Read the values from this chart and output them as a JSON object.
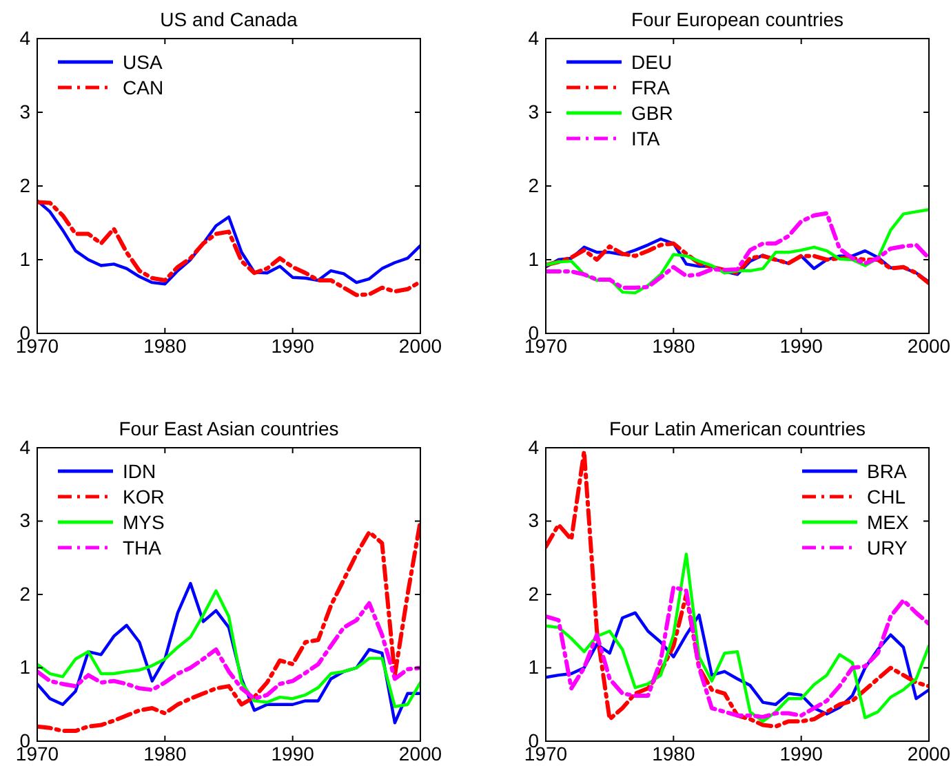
{
  "chart_data": [
    {
      "type": "line",
      "title": "US and Canada",
      "x": [
        1970,
        1971,
        1972,
        1973,
        1974,
        1975,
        1976,
        1977,
        1978,
        1979,
        1980,
        1981,
        1982,
        1983,
        1984,
        1985,
        1986,
        1987,
        1988,
        1989,
        1990,
        1991,
        1992,
        1993,
        1994,
        1995,
        1996,
        1997,
        1998,
        1999,
        2000
      ],
      "xlim": [
        1970,
        2000
      ],
      "xticks": [
        1970,
        1980,
        1990,
        2000
      ],
      "ylim": [
        0,
        4
      ],
      "yticks": [
        0,
        1,
        2,
        3,
        4
      ],
      "grid": false,
      "legend": "top left",
      "series": [
        {
          "name": "USA",
          "color": "#0000ff",
          "line_style": "solid",
          "values": [
            1.8,
            1.65,
            1.4,
            1.12,
            1.0,
            0.92,
            0.94,
            0.88,
            0.77,
            0.69,
            0.67,
            0.85,
            1.0,
            1.22,
            1.46,
            1.58,
            1.1,
            0.83,
            0.82,
            0.91,
            0.76,
            0.75,
            0.72,
            0.85,
            0.81,
            0.69,
            0.74,
            0.88,
            0.96,
            1.02,
            1.19
          ]
        },
        {
          "name": "CAN",
          "color": "#ff0000",
          "line_style": "dashed",
          "values": [
            1.78,
            1.77,
            1.6,
            1.35,
            1.35,
            1.22,
            1.42,
            1.1,
            0.85,
            0.75,
            0.72,
            0.9,
            1.02,
            1.22,
            1.35,
            1.38,
            0.98,
            0.82,
            0.88,
            1.02,
            0.9,
            0.82,
            0.72,
            0.72,
            0.62,
            0.52,
            0.53,
            0.62,
            0.57,
            0.6,
            0.7
          ]
        }
      ]
    },
    {
      "type": "line",
      "title": "Four European countries",
      "x": [
        1970,
        1971,
        1972,
        1973,
        1974,
        1975,
        1976,
        1977,
        1978,
        1979,
        1980,
        1981,
        1982,
        1983,
        1984,
        1985,
        1986,
        1987,
        1988,
        1989,
        1990,
        1991,
        1992,
        1993,
        1994,
        1995,
        1996,
        1997,
        1998,
        1999,
        2000
      ],
      "xlim": [
        1970,
        2000
      ],
      "xticks": [
        1970,
        1980,
        1990,
        2000
      ],
      "ylim": [
        0,
        4
      ],
      "yticks": [
        0,
        1,
        2,
        3,
        4
      ],
      "grid": false,
      "legend": "top left",
      "series": [
        {
          "name": "DEU",
          "color": "#0000ff",
          "line_style": "solid",
          "values": [
            0.9,
            1.0,
            1.02,
            1.17,
            1.1,
            1.1,
            1.07,
            1.13,
            1.2,
            1.28,
            1.22,
            0.94,
            0.91,
            0.91,
            0.84,
            0.8,
            0.98,
            1.06,
            1.0,
            0.95,
            1.05,
            0.88,
            1.0,
            1.05,
            1.05,
            1.12,
            1.03,
            0.89,
            0.89,
            0.82,
            0.7
          ]
        },
        {
          "name": "FRA",
          "color": "#ff0000",
          "line_style": "dashed",
          "values": [
            0.93,
            0.97,
            1.03,
            1.13,
            1.0,
            1.18,
            1.08,
            1.05,
            1.12,
            1.2,
            1.22,
            1.08,
            0.95,
            0.9,
            0.86,
            0.82,
            1.02,
            1.05,
            1.0,
            0.95,
            1.05,
            1.05,
            1.0,
            1.02,
            1.02,
            1.0,
            1.0,
            0.88,
            0.9,
            0.82,
            0.68
          ]
        },
        {
          "name": "GBR",
          "color": "#00ff00",
          "line_style": "solid",
          "values": [
            0.93,
            0.97,
            0.98,
            0.8,
            0.72,
            0.74,
            0.56,
            0.55,
            0.65,
            0.8,
            1.07,
            1.05,
            0.98,
            0.92,
            0.82,
            0.85,
            0.85,
            0.88,
            1.1,
            1.1,
            1.13,
            1.17,
            1.12,
            1.01,
            1.0,
            0.92,
            1.02,
            1.4,
            1.62,
            1.65,
            1.68
          ]
        },
        {
          "name": "ITA",
          "color": "#ff00ff",
          "line_style": "dashed",
          "values": [
            0.84,
            0.84,
            0.84,
            0.8,
            0.73,
            0.73,
            0.62,
            0.62,
            0.63,
            0.76,
            0.9,
            0.78,
            0.8,
            0.87,
            0.86,
            0.87,
            1.13,
            1.22,
            1.22,
            1.32,
            1.52,
            1.6,
            1.63,
            1.15,
            1.02,
            0.95,
            1.02,
            1.15,
            1.18,
            1.2,
            1.02
          ]
        }
      ]
    },
    {
      "type": "line",
      "title": "Four East Asian countries",
      "x": [
        1970,
        1971,
        1972,
        1973,
        1974,
        1975,
        1976,
        1977,
        1978,
        1979,
        1980,
        1981,
        1982,
        1983,
        1984,
        1985,
        1986,
        1987,
        1988,
        1989,
        1990,
        1991,
        1992,
        1993,
        1994,
        1995,
        1996,
        1997,
        1998,
        1999,
        2000
      ],
      "xlim": [
        1970,
        2000
      ],
      "xticks": [
        1970,
        1980,
        1990,
        2000
      ],
      "ylim": [
        0,
        4
      ],
      "yticks": [
        0,
        1,
        2,
        3,
        4
      ],
      "grid": false,
      "legend": "top left",
      "series": [
        {
          "name": "IDN",
          "color": "#0000ff",
          "line_style": "solid",
          "values": [
            0.78,
            0.58,
            0.5,
            0.68,
            1.22,
            1.18,
            1.43,
            1.58,
            1.35,
            0.82,
            1.12,
            1.75,
            2.15,
            1.63,
            1.78,
            1.55,
            0.85,
            0.42,
            0.5,
            0.5,
            0.5,
            0.55,
            0.55,
            0.85,
            0.95,
            1.0,
            1.25,
            1.2,
            0.25,
            0.65,
            0.65
          ]
        },
        {
          "name": "KOR",
          "color": "#ff0000",
          "line_style": "dashed",
          "values": [
            0.2,
            0.18,
            0.14,
            0.14,
            0.2,
            0.22,
            0.28,
            0.35,
            0.42,
            0.45,
            0.38,
            0.5,
            0.58,
            0.65,
            0.72,
            0.75,
            0.5,
            0.6,
            0.8,
            1.1,
            1.05,
            1.35,
            1.38,
            1.85,
            2.2,
            2.55,
            2.85,
            2.7,
            0.9,
            2.0,
            3.0
          ]
        },
        {
          "name": "MYS",
          "color": "#00ff00",
          "line_style": "solid",
          "values": [
            1.05,
            0.92,
            0.88,
            1.12,
            1.22,
            0.92,
            0.92,
            0.95,
            0.97,
            1.03,
            1.12,
            1.28,
            1.42,
            1.72,
            2.05,
            1.7,
            0.8,
            0.55,
            0.53,
            0.6,
            0.58,
            0.63,
            0.73,
            0.92,
            0.95,
            1.0,
            1.13,
            1.13,
            0.47,
            0.5,
            0.8
          ]
        },
        {
          "name": "THA",
          "color": "#ff00ff",
          "line_style": "dashed",
          "values": [
            0.95,
            0.82,
            0.78,
            0.75,
            0.9,
            0.8,
            0.82,
            0.78,
            0.72,
            0.7,
            0.8,
            0.92,
            1.0,
            1.12,
            1.25,
            0.95,
            0.72,
            0.58,
            0.63,
            0.78,
            0.82,
            0.93,
            1.05,
            1.3,
            1.55,
            1.65,
            1.88,
            1.45,
            0.85,
            0.98,
            1.0
          ]
        }
      ]
    },
    {
      "type": "line",
      "title": "Four Latin American countries",
      "x": [
        1970,
        1971,
        1972,
        1973,
        1974,
        1975,
        1976,
        1977,
        1978,
        1979,
        1980,
        1981,
        1982,
        1983,
        1984,
        1985,
        1986,
        1987,
        1988,
        1989,
        1990,
        1991,
        1992,
        1993,
        1994,
        1995,
        1996,
        1997,
        1998,
        1999,
        2000
      ],
      "xlim": [
        1970,
        2000
      ],
      "xticks": [
        1970,
        1980,
        1990,
        2000
      ],
      "ylim": [
        0,
        4
      ],
      "yticks": [
        0,
        1,
        2,
        3,
        4
      ],
      "grid": false,
      "legend": "top right",
      "series": [
        {
          "name": "BRA",
          "color": "#0000ff",
          "line_style": "solid",
          "values": [
            0.87,
            0.9,
            0.92,
            1.0,
            1.32,
            1.2,
            1.68,
            1.75,
            1.5,
            1.35,
            1.15,
            1.45,
            1.72,
            0.9,
            0.95,
            0.85,
            0.76,
            0.53,
            0.5,
            0.65,
            0.63,
            0.45,
            0.37,
            0.46,
            0.62,
            1.0,
            1.25,
            1.45,
            1.28,
            0.58,
            0.7
          ]
        },
        {
          "name": "CHL",
          "color": "#ff0000",
          "line_style": "dashed",
          "values": [
            2.65,
            2.95,
            2.75,
            3.95,
            1.5,
            0.3,
            0.45,
            0.65,
            0.72,
            0.95,
            1.3,
            2.0,
            1.0,
            0.7,
            0.65,
            0.35,
            0.3,
            0.22,
            0.2,
            0.27,
            0.27,
            0.3,
            0.4,
            0.5,
            0.55,
            0.7,
            0.85,
            1.0,
            0.9,
            0.8,
            0.75
          ]
        },
        {
          "name": "MEX",
          "color": "#00ff00",
          "line_style": "solid",
          "values": [
            1.57,
            1.55,
            1.4,
            1.22,
            1.43,
            1.5,
            1.25,
            0.73,
            0.78,
            0.9,
            1.45,
            2.55,
            1.15,
            0.82,
            1.2,
            1.22,
            0.4,
            0.27,
            0.4,
            0.58,
            0.58,
            0.77,
            0.9,
            1.18,
            1.07,
            0.32,
            0.4,
            0.6,
            0.7,
            0.85,
            1.3
          ]
        },
        {
          "name": "URY",
          "color": "#ff00ff",
          "line_style": "dashed",
          "values": [
            1.7,
            1.65,
            0.72,
            1.0,
            1.45,
            0.85,
            0.65,
            0.62,
            0.62,
            1.1,
            2.1,
            2.05,
            1.0,
            0.45,
            0.4,
            0.35,
            0.35,
            0.33,
            0.38,
            0.38,
            0.35,
            0.45,
            0.55,
            0.75,
            1.0,
            1.02,
            1.2,
            1.7,
            1.92,
            1.75,
            1.6
          ]
        }
      ]
    }
  ]
}
